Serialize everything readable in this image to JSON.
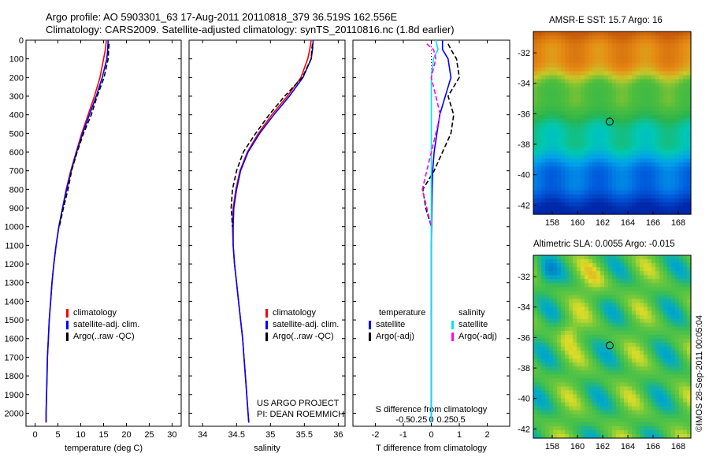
{
  "header": {
    "line1": "Argo profile: AO 5903301_63 17-Aug-2011 20110818_379 36.519S 162.556E",
    "line2": "Climatology: CARS2009. Satellite-adjusted climatology: synTS_20110816.nc (1.8d earlier)"
  },
  "colors": {
    "climatology": "#ff0000",
    "satellite": "#0000ff",
    "argo": "#000000",
    "salinity_satellite": "#00e5ee",
    "salinity_argo": "#ff00ff",
    "panel_bg": "#ffffff"
  },
  "credits": {
    "project": "US ARGO PROJECT",
    "pi": "PI: DEAN ROEMMICH",
    "watermark": "©IMOS 28-Sep-2011 00:05:04"
  },
  "chart_data": [
    {
      "type": "line",
      "id": "temperature",
      "xlabel": "temperature (deg C)",
      "ylabel": "",
      "xlim": [
        -2,
        32
      ],
      "ylim": [
        2070,
        0
      ],
      "xticks": [
        0,
        5,
        10,
        15,
        20,
        25,
        30
      ],
      "yticks": [
        0,
        100,
        200,
        300,
        400,
        500,
        600,
        700,
        800,
        900,
        1000,
        1100,
        1200,
        1300,
        1400,
        1500,
        1600,
        1700,
        1800,
        1900,
        2000
      ],
      "legend": [
        "climatology",
        "satellite-adj. clim.",
        "Argo(..raw -QC)"
      ],
      "legend_placement": "lower-center",
      "series": [
        {
          "name": "climatology",
          "style": "solid",
          "x": [
            15.6,
            15.4,
            15.0,
            14.2,
            13.0,
            11.6,
            10.2,
            9.0,
            7.8,
            6.8,
            6.0,
            5.2,
            4.6,
            4.1,
            3.7,
            3.4,
            3.1,
            2.9,
            2.7,
            2.6,
            2.5,
            2.4,
            2.4
          ],
          "y": [
            0,
            50,
            100,
            200,
            300,
            400,
            500,
            600,
            700,
            800,
            900,
            1000,
            1100,
            1200,
            1300,
            1400,
            1500,
            1600,
            1700,
            1800,
            1900,
            2000,
            2050
          ]
        },
        {
          "name": "satellite-adj. clim.",
          "style": "solid",
          "x": [
            16.0,
            15.9,
            15.7,
            14.7,
            13.4,
            11.9,
            10.4,
            9.1,
            7.9,
            6.9,
            6.0,
            5.2,
            4.6,
            4.1,
            3.7,
            3.4,
            3.1,
            2.9,
            2.7,
            2.6,
            2.5,
            2.4,
            2.4
          ],
          "y": [
            0,
            50,
            100,
            200,
            300,
            400,
            500,
            600,
            700,
            800,
            900,
            1000,
            1100,
            1200,
            1300,
            1400,
            1500,
            1600,
            1700,
            1800,
            1900,
            2000,
            2050
          ]
        },
        {
          "name": "Argo(..raw -QC)",
          "style": "dashed",
          "x": [
            16.2,
            16.1,
            16.0,
            15.1,
            13.6,
            12.3,
            10.6,
            9.2,
            8.0,
            7.2,
            6.2,
            5.3
          ],
          "y": [
            20,
            50,
            100,
            200,
            300,
            400,
            500,
            600,
            700,
            800,
            900,
            1000
          ]
        }
      ]
    },
    {
      "type": "line",
      "id": "salinity",
      "xlabel": "salinity",
      "ylabel": "",
      "xlim": [
        33.8,
        36.1
      ],
      "ylim": [
        2070,
        0
      ],
      "xticks": [
        34,
        34.5,
        35,
        35.5,
        36
      ],
      "legend": [
        "climatology",
        "satellite-adj. clim.",
        "Argo(..raw -QC)"
      ],
      "legend_placement": "lower-center",
      "series": [
        {
          "name": "climatology",
          "style": "solid",
          "x": [
            35.6,
            35.58,
            35.55,
            35.45,
            35.25,
            35.02,
            34.82,
            34.66,
            34.55,
            34.49,
            34.45,
            34.44,
            34.45,
            34.47,
            34.5,
            34.53,
            34.56,
            34.59,
            34.61,
            34.63,
            34.65,
            34.67,
            34.68
          ],
          "y": [
            0,
            50,
            100,
            200,
            300,
            400,
            500,
            600,
            700,
            800,
            900,
            1000,
            1100,
            1200,
            1300,
            1400,
            1500,
            1600,
            1700,
            1800,
            1900,
            2000,
            2050
          ]
        },
        {
          "name": "satellite-adj. clim.",
          "style": "solid",
          "x": [
            35.63,
            35.62,
            35.6,
            35.48,
            35.28,
            35.05,
            34.84,
            34.67,
            34.56,
            34.5,
            34.46,
            34.45,
            34.45,
            34.47,
            34.5,
            34.53,
            34.56,
            34.59,
            34.61,
            34.63,
            34.65,
            34.67,
            34.68
          ],
          "y": [
            0,
            50,
            100,
            200,
            300,
            400,
            500,
            600,
            700,
            800,
            900,
            1000,
            1100,
            1200,
            1300,
            1400,
            1500,
            1600,
            1700,
            1800,
            1900,
            2000,
            2050
          ]
        },
        {
          "name": "Argo(..raw -QC)",
          "style": "dashed",
          "x": [
            35.62,
            35.61,
            35.6,
            35.47,
            35.21,
            34.98,
            34.78,
            34.6,
            34.5,
            34.44,
            34.42,
            34.44
          ],
          "y": [
            20,
            50,
            100,
            200,
            300,
            400,
            500,
            600,
            700,
            800,
            900,
            1000
          ]
        }
      ]
    },
    {
      "type": "line",
      "id": "differences",
      "xlabel": "T difference from climatology",
      "xlabel_top": "S difference from climatology",
      "xlim": [
        -2.8,
        2.8
      ],
      "ylim": [
        2070,
        0
      ],
      "xticks": [
        -2,
        -1,
        0,
        1,
        2
      ],
      "xticklabels": [
        "-2",
        "-1",
        "0",
        "1",
        "2"
      ],
      "sticks": [
        -0.5,
        -0.25,
        0,
        0.25,
        0.5
      ],
      "sticklabels": [
        "-0.5",
        "-0.25",
        "0",
        "0.25",
        "0.5"
      ],
      "legend_groups": [
        "temperature",
        "salinity"
      ],
      "legend": [
        "satellite",
        "Argo(-adj)",
        "satellite",
        "Argo(-adj)"
      ],
      "series": [
        {
          "name": "satellite",
          "group": "temperature",
          "style": "solid",
          "x": [
            0.4,
            0.4,
            0.6,
            0.7,
            0.5,
            0.3,
            0.2,
            0.1,
            0.05,
            0.03,
            0.02,
            0.01,
            0.0,
            0.0,
            0.0,
            0.0,
            0.0,
            0.0,
            0.0,
            0.0,
            0.0
          ],
          "y": [
            0,
            50,
            100,
            200,
            300,
            400,
            500,
            600,
            700,
            800,
            900,
            1000,
            1100,
            1200,
            1300,
            1400,
            1500,
            1600,
            1700,
            1800,
            2050
          ]
        },
        {
          "name": "Argo(-adj)",
          "group": "temperature",
          "style": "dashed",
          "x": [
            0.6,
            0.7,
            0.9,
            1.0,
            0.6,
            0.8,
            0.7,
            0.4,
            0.1,
            -0.3,
            -0.2,
            0.0
          ],
          "y": [
            20,
            50,
            100,
            200,
            300,
            400,
            500,
            600,
            700,
            800,
            900,
            1000
          ]
        },
        {
          "name": "satellite",
          "group": "salinity",
          "style": "solid",
          "x": [
            0.02,
            0.03,
            0.01,
            0.0,
            0.0,
            0.0,
            0.0,
            0.0,
            0.0,
            0.0,
            0.0,
            0.0,
            0.0,
            0.0,
            0.0,
            0.0,
            0.0,
            0.0,
            0.0,
            0.0
          ],
          "y": [
            0,
            50,
            100,
            200,
            300,
            400,
            500,
            600,
            700,
            800,
            900,
            1000,
            1100,
            1200,
            1300,
            1400,
            1500,
            1600,
            1700,
            2050
          ]
        },
        {
          "name": "Argo(-adj)",
          "group": "salinity",
          "style": "dashed",
          "x": [
            -0.02,
            0.01,
            0.02,
            0.0,
            0.02,
            0.04,
            0.02,
            0.0,
            -0.02,
            -0.04,
            -0.02,
            0.0
          ],
          "y": [
            20,
            50,
            100,
            200,
            300,
            400,
            500,
            600,
            700,
            800,
            900,
            1000
          ]
        }
      ]
    },
    {
      "type": "heatmap",
      "id": "sst-map",
      "title": "AMSR-E SST: 15.7 Argo: 16",
      "xlim": [
        156.5,
        169
      ],
      "ylim": [
        -42.6,
        -30.6
      ],
      "xticks": [
        158,
        160,
        162,
        164,
        166,
        168
      ],
      "yticks": [
        -32,
        -34,
        -36,
        -38,
        -40,
        -42
      ],
      "marker": {
        "lon": 162.556,
        "lat": -36.519
      }
    },
    {
      "type": "heatmap",
      "id": "sla-map",
      "title": "Altimetric SLA: 0.0055 Argo: -0.015",
      "xlim": [
        156.5,
        169
      ],
      "ylim": [
        -42.6,
        -30.6
      ],
      "xticks": [
        158,
        160,
        162,
        164,
        166,
        168
      ],
      "yticks": [
        -32,
        -34,
        -36,
        -38,
        -40,
        -42
      ],
      "marker": {
        "lon": 162.556,
        "lat": -36.519
      }
    }
  ]
}
